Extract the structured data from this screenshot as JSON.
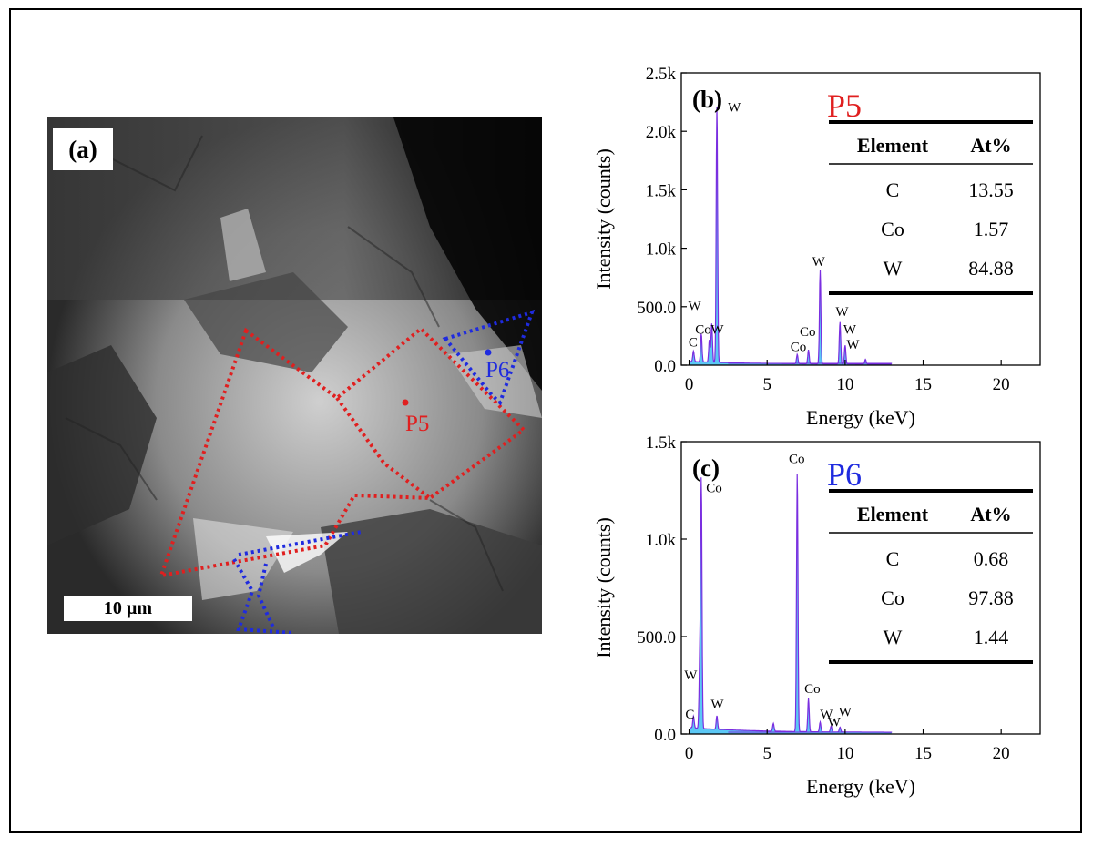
{
  "panel_a": {
    "label": "(a)",
    "scale_bar": "10 µm",
    "points": [
      {
        "name": "P5",
        "color": "#e01f1f"
      },
      {
        "name": "P6",
        "color": "#1f2bdf"
      }
    ]
  },
  "chart_data": [
    {
      "type": "line",
      "panel_label": "(b)",
      "point_label": "P5",
      "point_color": "#e01f1f",
      "xlabel": "Energy (keV)",
      "ylabel": "Intensity (counts)",
      "xlim": [
        -0.5,
        22.5
      ],
      "ylim": [
        0,
        2500
      ],
      "xticks": [
        0,
        5,
        10,
        15,
        20
      ],
      "yticks": [
        0,
        500,
        1000,
        1500,
        2000,
        2500
      ],
      "ytick_labels": [
        "0.0",
        "500.0",
        "1.0k",
        "1.5k",
        "2.0k",
        "2.5k"
      ],
      "fill_color": "#5bc8f5",
      "line_color": "#7a2ee0",
      "peaks": [
        {
          "x": 0.28,
          "y": 90,
          "label": "C"
        },
        {
          "x": 0.78,
          "y": 240,
          "label": "Co"
        },
        {
          "x": 1.3,
          "y": 190,
          "label": "W"
        },
        {
          "x": 1.78,
          "y": 2200,
          "label": "W"
        },
        {
          "x": 1.45,
          "y": 330,
          "label": "W"
        },
        {
          "x": 6.93,
          "y": 80,
          "label": "Co"
        },
        {
          "x": 7.65,
          "y": 120,
          "label": "Co"
        },
        {
          "x": 8.4,
          "y": 800,
          "label": "W"
        },
        {
          "x": 9.67,
          "y": 360,
          "label": "W"
        },
        {
          "x": 10.0,
          "y": 160,
          "label": "W"
        },
        {
          "x": 11.3,
          "y": 40,
          "label": ""
        }
      ],
      "annotations": [
        {
          "text": "W",
          "x": 0.35,
          "y": 470
        },
        {
          "text": "C",
          "x": 0.25,
          "y": 160
        },
        {
          "text": "Co",
          "x": 0.9,
          "y": 270
        },
        {
          "text": "W",
          "x": 1.8,
          "y": 270
        },
        {
          "text": "W",
          "x": 2.9,
          "y": 2170
        },
        {
          "text": "Co",
          "x": 7.0,
          "y": 120
        },
        {
          "text": "Co",
          "x": 7.6,
          "y": 250
        },
        {
          "text": "W",
          "x": 8.3,
          "y": 850
        },
        {
          "text": "W",
          "x": 9.8,
          "y": 420
        },
        {
          "text": "W",
          "x": 10.3,
          "y": 270
        },
        {
          "text": "W",
          "x": 10.5,
          "y": 140
        }
      ],
      "table": {
        "headers": [
          "Element",
          "At%"
        ],
        "rows": [
          [
            "C",
            "13.55"
          ],
          [
            "Co",
            "1.57"
          ],
          [
            "W",
            "84.88"
          ]
        ]
      }
    },
    {
      "type": "line",
      "panel_label": "(c)",
      "point_label": "P6",
      "point_color": "#1f2bdf",
      "xlabel": "Energy (keV)",
      "ylabel": "Intensity (counts)",
      "xlim": [
        -0.5,
        22.5
      ],
      "ylim": [
        0,
        1500
      ],
      "xticks": [
        0,
        5,
        10,
        15,
        20
      ],
      "yticks": [
        0,
        500,
        1000,
        1500
      ],
      "ytick_labels": [
        "0.0",
        "500.0",
        "1.0k",
        "1.5k"
      ],
      "fill_color": "#5bc8f5",
      "line_color": "#7a2ee0",
      "peaks": [
        {
          "x": 0.28,
          "y": 60,
          "label": "C"
        },
        {
          "x": 0.78,
          "y": 1260,
          "label": "Co"
        },
        {
          "x": 0.68,
          "y": 330,
          "label": "W"
        },
        {
          "x": 1.78,
          "y": 70,
          "label": "W"
        },
        {
          "x": 5.4,
          "y": 40,
          "label": ""
        },
        {
          "x": 6.93,
          "y": 1330,
          "label": "Co"
        },
        {
          "x": 7.65,
          "y": 170,
          "label": "Co"
        },
        {
          "x": 8.4,
          "y": 50,
          "label": "W"
        },
        {
          "x": 9.1,
          "y": 30,
          "label": "W"
        },
        {
          "x": 9.67,
          "y": 25,
          "label": "W"
        }
      ],
      "annotations": [
        {
          "text": "W",
          "x": 0.1,
          "y": 280
        },
        {
          "text": "C",
          "x": 0.05,
          "y": 80
        },
        {
          "text": "Co",
          "x": 1.6,
          "y": 1240
        },
        {
          "text": "W",
          "x": 1.8,
          "y": 130
        },
        {
          "text": "Co",
          "x": 6.9,
          "y": 1390
        },
        {
          "text": "Co",
          "x": 7.9,
          "y": 210
        },
        {
          "text": "W",
          "x": 8.8,
          "y": 80
        },
        {
          "text": "W",
          "x": 9.3,
          "y": 40
        },
        {
          "text": "W",
          "x": 10.0,
          "y": 90
        }
      ],
      "table": {
        "headers": [
          "Element",
          "At%"
        ],
        "rows": [
          [
            "C",
            "0.68"
          ],
          [
            "Co",
            "97.88"
          ],
          [
            "W",
            "1.44"
          ]
        ]
      }
    }
  ]
}
